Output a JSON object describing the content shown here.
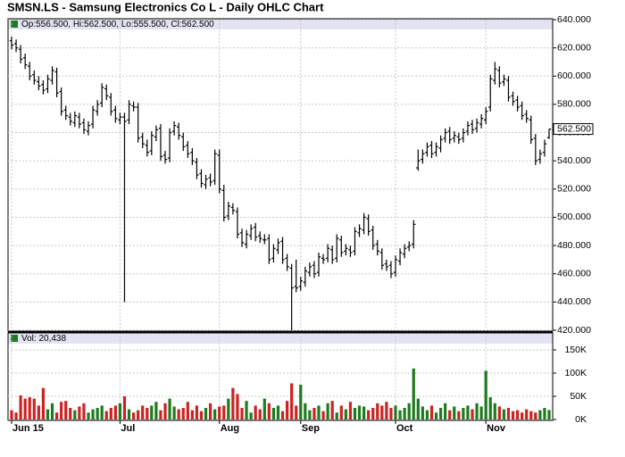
{
  "chart_data": {
    "type": "ohlc",
    "title": "SMSN.LS - Samsung Electronics Co L - Daily OHLC Chart",
    "legend_text": "Op:556.500, Hi:562.500, Lo:555.500, Cl:562.500",
    "categories": [
      "Jun 15",
      null,
      null,
      null,
      null,
      null,
      null,
      null,
      null,
      null,
      null,
      null,
      null,
      null,
      null,
      null,
      null,
      null,
      null,
      null,
      null,
      null,
      null,
      null,
      "Jul",
      null,
      null,
      null,
      null,
      null,
      null,
      null,
      null,
      null,
      null,
      null,
      null,
      null,
      null,
      null,
      null,
      null,
      null,
      null,
      null,
      null,
      "Aug",
      null,
      null,
      null,
      null,
      null,
      null,
      null,
      null,
      null,
      null,
      null,
      null,
      null,
      null,
      null,
      null,
      null,
      "Sep",
      null,
      null,
      null,
      null,
      null,
      null,
      null,
      null,
      null,
      null,
      null,
      null,
      null,
      null,
      null,
      null,
      null,
      null,
      null,
      null,
      "Oct",
      null,
      null,
      null,
      null,
      null,
      null,
      null,
      null,
      null,
      null,
      null,
      null,
      null,
      null,
      null,
      null,
      null,
      null,
      null,
      "Nov",
      null,
      null,
      null,
      null,
      null,
      null,
      null,
      null,
      null,
      null,
      null,
      null,
      null,
      null
    ],
    "open": [
      625,
      623,
      619,
      613,
      607,
      601,
      596,
      594,
      591,
      597,
      603,
      589,
      576,
      571,
      567,
      571,
      567,
      561,
      566,
      575,
      581,
      591,
      585,
      576,
      569,
      571,
      569,
      579,
      578,
      557,
      551,
      547,
      557,
      563,
      544,
      542,
      561,
      564,
      557,
      551,
      546,
      539,
      531,
      523,
      528,
      526,
      544,
      519,
      501,
      507,
      504,
      489,
      481,
      487,
      493,
      487,
      484,
      485,
      471,
      477,
      483,
      471,
      464,
      451,
      451,
      454,
      461,
      466,
      461,
      471,
      471,
      477,
      471,
      484,
      476,
      477,
      476,
      489,
      491,
      499,
      491,
      481,
      475,
      467,
      466,
      461,
      469,
      474,
      479,
      481,
      535,
      541,
      546,
      551,
      546,
      549,
      556,
      561,
      556,
      557,
      556,
      561,
      566,
      563,
      566,
      569,
      578,
      597,
      604,
      596,
      597,
      586,
      583,
      579,
      573,
      569,
      556,
      541,
      546,
      556.5
    ],
    "high": [
      628,
      626,
      622,
      616,
      610,
      604,
      600,
      597,
      601,
      607,
      606,
      592,
      579,
      574,
      575,
      574,
      570,
      568,
      579,
      583,
      595,
      594,
      588,
      579,
      574,
      574,
      583,
      582,
      581,
      560,
      555,
      561,
      565,
      566,
      547,
      563,
      568,
      567,
      560,
      554,
      549,
      542,
      534,
      530,
      531,
      548,
      548,
      523,
      511,
      510,
      507,
      492,
      491,
      495,
      496,
      490,
      488,
      488,
      481,
      485,
      486,
      474,
      467,
      470,
      458,
      465,
      468,
      469,
      475,
      474,
      481,
      480,
      488,
      487,
      481,
      480,
      493,
      495,
      503,
      502,
      494,
      484,
      478,
      470,
      469,
      473,
      478,
      481,
      483,
      498,
      548,
      548,
      553,
      554,
      553,
      558,
      563,
      564,
      561,
      560,
      563,
      568,
      569,
      570,
      573,
      578,
      601,
      610,
      607,
      601,
      600,
      589,
      586,
      582,
      576,
      572,
      559,
      548,
      555,
      562.5
    ],
    "low": [
      619,
      617,
      609,
      605,
      597,
      594,
      590,
      587,
      588,
      594,
      585,
      572,
      569,
      565,
      564,
      563,
      559,
      558,
      563,
      572,
      578,
      583,
      572,
      567,
      566,
      440,
      566,
      575,
      553,
      549,
      543,
      544,
      554,
      540,
      538,
      539,
      558,
      555,
      547,
      542,
      537,
      527,
      521,
      520,
      522,
      523,
      517,
      497,
      498,
      502,
      485,
      479,
      478,
      484,
      483,
      482,
      481,
      467,
      468,
      474,
      467,
      462,
      420,
      447,
      448,
      451,
      458,
      457,
      458,
      467,
      468,
      467,
      468,
      472,
      473,
      472,
      473,
      486,
      488,
      487,
      477,
      473,
      463,
      462,
      457,
      458,
      466,
      471,
      476,
      478,
      533,
      538,
      543,
      542,
      543,
      546,
      553,
      552,
      553,
      552,
      553,
      558,
      559,
      560,
      563,
      566,
      575,
      594,
      592,
      593,
      582,
      579,
      575,
      569,
      567,
      552,
      537,
      538,
      543,
      555.5
    ],
    "close": [
      622,
      620,
      612,
      608,
      600,
      597,
      593,
      590,
      598,
      604,
      588,
      575,
      572,
      568,
      572,
      566,
      562,
      565,
      576,
      580,
      592,
      586,
      575,
      570,
      571,
      568,
      580,
      578,
      556,
      552,
      546,
      558,
      562,
      543,
      541,
      560,
      565,
      558,
      550,
      545,
      540,
      530,
      524,
      527,
      525,
      545,
      520,
      500,
      508,
      505,
      488,
      482,
      488,
      492,
      486,
      485,
      484,
      470,
      478,
      482,
      470,
      465,
      450,
      450,
      455,
      462,
      465,
      460,
      472,
      470,
      478,
      470,
      485,
      475,
      478,
      475,
      490,
      492,
      500,
      490,
      480,
      476,
      466,
      465,
      460,
      470,
      475,
      478,
      480,
      495,
      540,
      545,
      550,
      545,
      550,
      555,
      560,
      555,
      558,
      555,
      560,
      565,
      562,
      567,
      570,
      575,
      598,
      605,
      595,
      598,
      585,
      582,
      578,
      572,
      570,
      555,
      540,
      545,
      552,
      562.5
    ],
    "bar_color": "#000000",
    "ylim": [
      420,
      640
    ],
    "yticks": [
      {
        "value": 420,
        "label": "420.000"
      },
      {
        "value": 440,
        "label": "440.000"
      },
      {
        "value": 460,
        "label": "460.000"
      },
      {
        "value": 480,
        "label": "480.000"
      },
      {
        "value": 500,
        "label": "500.000"
      },
      {
        "value": 520,
        "label": "520.000"
      },
      {
        "value": 540,
        "label": "540.000"
      },
      {
        "value": 560,
        "label": "560.000"
      },
      {
        "value": 580,
        "label": "580.000"
      },
      {
        "value": 600,
        "label": "600.000"
      },
      {
        "value": 620,
        "label": "620.000"
      },
      {
        "value": 640,
        "label": "640.000"
      }
    ],
    "last_price": {
      "value": 562.5,
      "label": "562.500"
    },
    "grid": true,
    "volume": {
      "legend_text": "Vol: 20,438",
      "values": [
        20000,
        15000,
        52000,
        45000,
        48000,
        45000,
        30000,
        68000,
        22000,
        35000,
        15000,
        38000,
        40000,
        25000,
        20000,
        28000,
        35000,
        15000,
        22000,
        25000,
        30000,
        18000,
        25000,
        30000,
        35000,
        50000,
        22000,
        15000,
        20000,
        30000,
        25000,
        30000,
        38000,
        20000,
        35000,
        45000,
        28000,
        22000,
        25000,
        38000,
        20000,
        30000,
        18000,
        25000,
        35000,
        22000,
        28000,
        30000,
        45000,
        68000,
        55000,
        25000,
        40000,
        15000,
        30000,
        22000,
        45000,
        35000,
        25000,
        30000,
        18000,
        40000,
        78000,
        30000,
        75000,
        35000,
        20000,
        25000,
        30000,
        18000,
        35000,
        40000,
        15000,
        30000,
        22000,
        38000,
        25000,
        30000,
        28000,
        20000,
        25000,
        35000,
        30000,
        38000,
        25000,
        30000,
        20000,
        25000,
        35000,
        110000,
        45000,
        28000,
        20000,
        30000,
        15000,
        25000,
        35000,
        20000,
        28000,
        18000,
        25000,
        30000,
        22000,
        35000,
        28000,
        105000,
        48000,
        35000,
        28000,
        22000,
        25000,
        18000,
        20000,
        15000,
        22000,
        18000,
        15000,
        20000,
        25000,
        20438
      ],
      "up_color": "#1f7a1f",
      "down_color": "#cc2222",
      "ylim": [
        0,
        180000
      ],
      "yticks": [
        {
          "value": 0,
          "label": "0K"
        },
        {
          "value": 50000,
          "label": "50K"
        },
        {
          "value": 100000,
          "label": "100K"
        },
        {
          "value": 150000,
          "label": "150K"
        }
      ]
    }
  }
}
